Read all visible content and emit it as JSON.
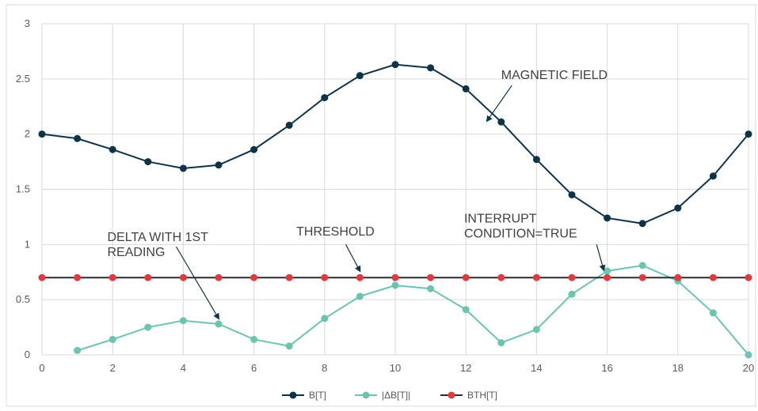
{
  "chart_data": {
    "type": "line",
    "x": [
      0,
      1,
      2,
      3,
      4,
      5,
      6,
      7,
      8,
      9,
      10,
      11,
      12,
      13,
      14,
      15,
      16,
      17,
      18,
      19,
      20
    ],
    "xlim": [
      0,
      20
    ],
    "ylim": [
      0,
      3
    ],
    "x_ticks": [
      0,
      2,
      4,
      6,
      8,
      10,
      12,
      14,
      16,
      18,
      20
    ],
    "y_ticks": [
      0,
      0.5,
      1,
      1.5,
      2,
      2.5,
      3
    ],
    "grid": true,
    "legend_position": "bottom",
    "series": [
      {
        "name": "B[T]",
        "color": "#0d3349",
        "values": [
          2.0,
          1.96,
          1.86,
          1.75,
          1.69,
          1.72,
          1.86,
          2.08,
          2.33,
          2.53,
          2.63,
          2.6,
          2.41,
          2.11,
          1.77,
          1.45,
          1.24,
          1.19,
          1.33,
          1.62,
          2.0
        ]
      },
      {
        "name": "|ΔB[T]|",
        "color": "#6cc3b0",
        "values": [
          null,
          0.04,
          0.14,
          0.25,
          0.31,
          0.28,
          0.14,
          0.08,
          0.33,
          0.53,
          0.63,
          0.6,
          0.41,
          0.11,
          0.23,
          0.55,
          0.76,
          0.81,
          0.67,
          0.38,
          0.0
        ]
      },
      {
        "name": "BTH[T]",
        "color": "#e0393e",
        "line_color": "#2b2b2b",
        "values": [
          0.7,
          0.7,
          0.7,
          0.7,
          0.7,
          0.7,
          0.7,
          0.7,
          0.7,
          0.7,
          0.7,
          0.7,
          0.7,
          0.7,
          0.7,
          0.7,
          0.7,
          0.7,
          0.7,
          0.7,
          0.7
        ]
      }
    ],
    "annotations": [
      {
        "text_lines": [
          "MAGNETIC FIELD"
        ],
        "text_at": [
          13,
          2.5
        ],
        "arrow_from": [
          13.3,
          2.44
        ],
        "arrow_to": [
          12.6,
          2.12
        ]
      },
      {
        "text_lines": [
          "THRESHOLD"
        ],
        "text_at": [
          7.2,
          1.08
        ],
        "arrow_from": [
          8.6,
          1.0
        ],
        "arrow_to": [
          9.0,
          0.76
        ]
      },
      {
        "text_lines": [
          "INTERRUPT",
          "CONDITION=TRUE"
        ],
        "text_at": [
          11.95,
          1.2
        ],
        "arrow_from": [
          15.7,
          1.0
        ],
        "arrow_to": [
          15.9,
          0.77
        ]
      },
      {
        "text_lines": [
          "DELTA WITH 1ST",
          "READING"
        ],
        "text_at": [
          1.85,
          1.03
        ],
        "arrow_from": [
          3.8,
          0.98
        ],
        "arrow_to": [
          5.0,
          0.33
        ]
      }
    ]
  }
}
